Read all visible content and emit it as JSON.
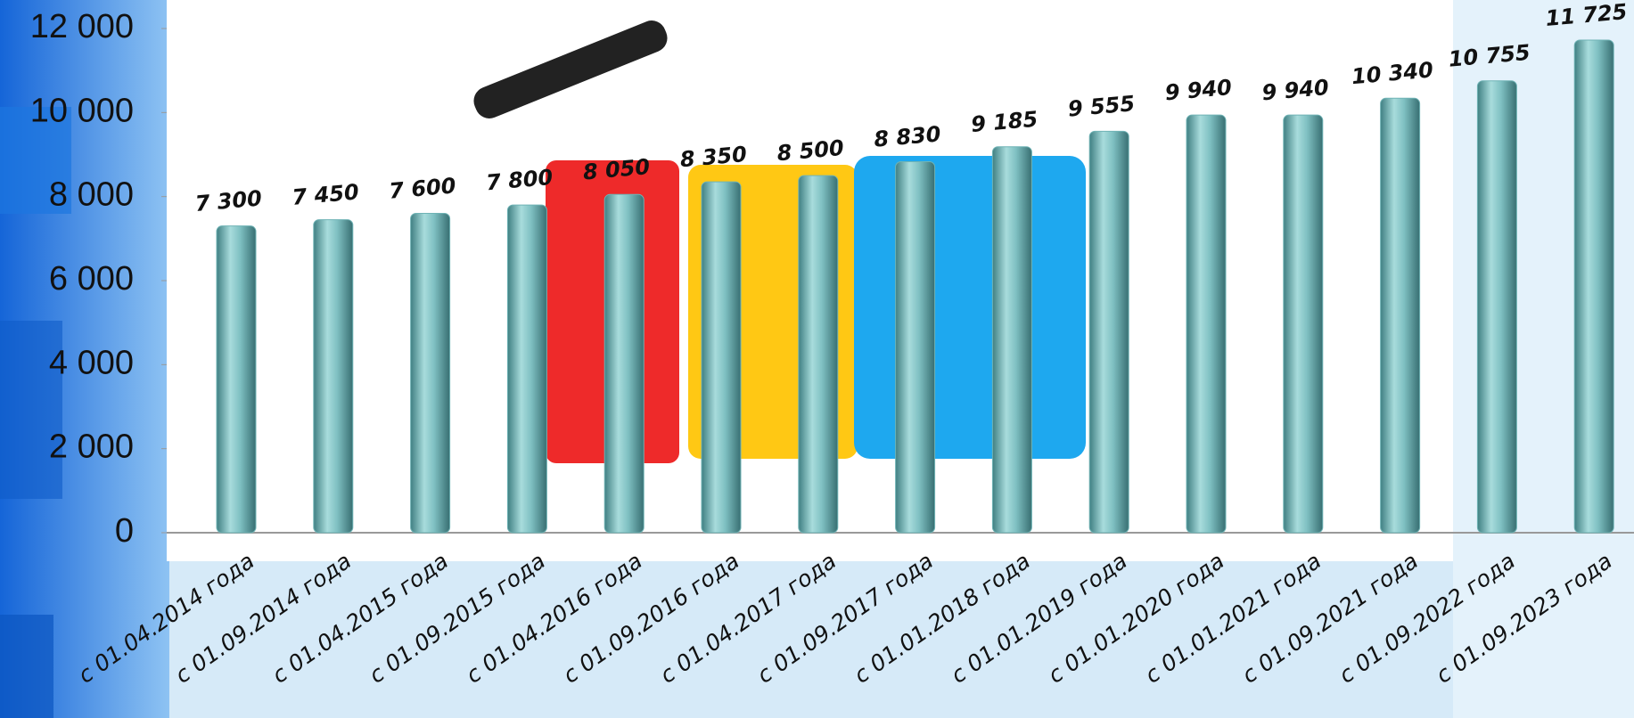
{
  "chart_data": {
    "type": "bar",
    "categories": [
      "с 01.04.2014 года",
      "с 01.09.2014 года",
      "с 01.04.2015 года",
      "с 01.09.2015 года",
      "с 01.04.2016 года",
      "с 01.09.2016 года",
      "с 01.04.2017 года",
      "с 01.09.2017 года",
      "с 01.01.2018 года",
      "с 01.01.2019 года",
      "с 01.01.2020 года",
      "с 01.01.2021 года",
      "с 01.09.2021 года",
      "с 01.09.2022 года",
      "с 01.09.2023 года"
    ],
    "values": [
      7300,
      7450,
      7600,
      7800,
      8050,
      8350,
      8500,
      8830,
      9185,
      9555,
      9940,
      9940,
      10340,
      10755,
      11725
    ],
    "value_labels": [
      "7 300",
      "7 450",
      "7 600",
      "7 800",
      "8 050",
      "8 350",
      "8 500",
      "8 830",
      "9 185",
      "9 555",
      "9 940",
      "9 940",
      "10 340",
      "10 755",
      "11 725"
    ],
    "color": "#6fb3b5",
    "ylim": [
      0,
      12000
    ],
    "yticks": [
      0,
      {
        "value": 2000,
        "label": "2 000"
      },
      {
        "value": 4000,
        "label": "4 000"
      },
      {
        "value": 6000,
        "label": "6 000"
      },
      {
        "value": 8000,
        "label": "8 000"
      },
      {
        "value": 10000,
        "label": "10 000"
      },
      {
        "value": 12000,
        "label": "12 000"
      }
    ],
    "grid": false
  }
}
